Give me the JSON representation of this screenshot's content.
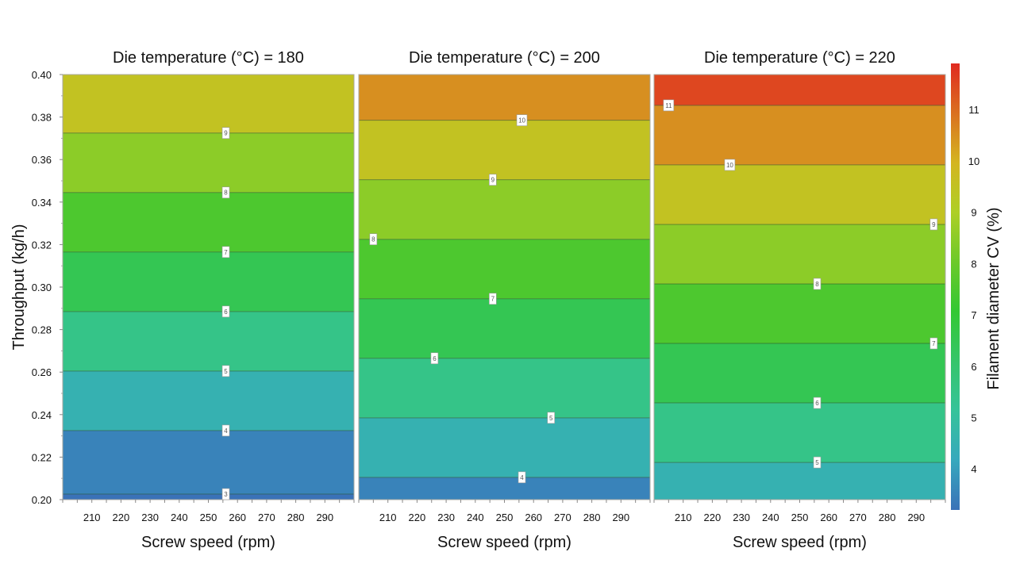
{
  "chart_data": {
    "type": "heatmap",
    "subtype": "filled-contour",
    "ylabel": "Throughput (kg/h)",
    "xlabel": "Screw speed (rpm)",
    "xlim": [
      200,
      300
    ],
    "ylim": [
      0.2,
      0.4
    ],
    "xticks": [
      210,
      220,
      230,
      240,
      250,
      260,
      270,
      280,
      290
    ],
    "yticks": [
      0.2,
      0.22,
      0.24,
      0.26,
      0.28,
      0.3,
      0.32,
      0.34,
      0.36,
      0.38,
      0.4
    ],
    "ytick_labels": [
      "0.20",
      "0.22",
      "0.24",
      "0.26",
      "0.28",
      "0.30",
      "0.32",
      "0.34",
      "0.36",
      "0.38",
      "0.40"
    ],
    "colorbar": {
      "label": "Filament diameter CV (%)",
      "range": [
        3.2,
        11.9
      ],
      "ticks": [
        4,
        5,
        6,
        7,
        8,
        9,
        10,
        11
      ],
      "colors": [
        "#3a72b8",
        "#37a8bd",
        "#35c39a",
        "#35c56a",
        "#33c833",
        "#6cc92a",
        "#aecf25",
        "#d4b520",
        "#da7020",
        "#e02a20"
      ]
    },
    "panels": [
      {
        "title": "Die temperature (°C) = 180",
        "die_temperature": 180,
        "contours": [
          {
            "level": 3,
            "throughput": 0.2026,
            "label_rpm": 256
          },
          {
            "level": 4,
            "throughput": 0.2325,
            "label_rpm": 256
          },
          {
            "level": 5,
            "throughput": 0.2605,
            "label_rpm": 256
          },
          {
            "level": 6,
            "throughput": 0.2885,
            "label_rpm": 256
          },
          {
            "level": 7,
            "throughput": 0.3165,
            "label_rpm": 256
          },
          {
            "level": 8,
            "throughput": 0.3445,
            "label_rpm": 256
          },
          {
            "level": 9,
            "throughput": 0.3725,
            "label_rpm": 256
          }
        ]
      },
      {
        "title": "Die temperature (°C) = 200",
        "die_temperature": 200,
        "contours": [
          {
            "level": 4,
            "throughput": 0.2105,
            "label_rpm": 256
          },
          {
            "level": 5,
            "throughput": 0.2385,
            "label_rpm": 266
          },
          {
            "level": 6,
            "throughput": 0.2665,
            "label_rpm": 226
          },
          {
            "level": 7,
            "throughput": 0.2945,
            "label_rpm": 246
          },
          {
            "level": 8,
            "throughput": 0.3225,
            "label_rpm": 205
          },
          {
            "level": 9,
            "throughput": 0.3505,
            "label_rpm": 246
          },
          {
            "level": 10,
            "throughput": 0.3785,
            "label_rpm": 256
          }
        ]
      },
      {
        "title": "Die temperature (°C) = 220",
        "die_temperature": 220,
        "contours": [
          {
            "level": 5,
            "throughput": 0.2175,
            "label_rpm": 256
          },
          {
            "level": 6,
            "throughput": 0.2455,
            "label_rpm": 256
          },
          {
            "level": 7,
            "throughput": 0.2735,
            "label_rpm": 296
          },
          {
            "level": 8,
            "throughput": 0.3015,
            "label_rpm": 256
          },
          {
            "level": 9,
            "throughput": 0.3295,
            "label_rpm": 296
          },
          {
            "level": 10,
            "throughput": 0.3575,
            "label_rpm": 226
          },
          {
            "level": 11,
            "throughput": 0.3855,
            "label_rpm": 205
          }
        ]
      }
    ]
  }
}
